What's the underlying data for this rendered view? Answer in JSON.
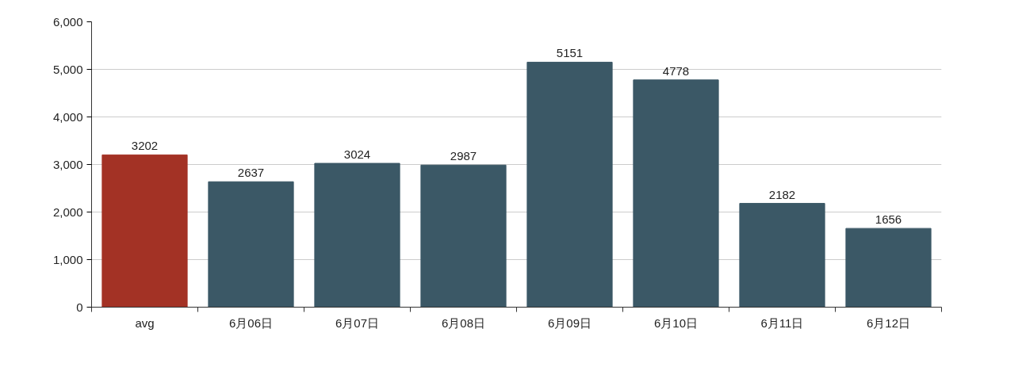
{
  "chart_data": {
    "type": "bar",
    "categories": [
      "avg",
      "6月06日",
      "6月07日",
      "6月08日",
      "6月09日",
      "6月10日",
      "6月11日",
      "6月12日"
    ],
    "values": [
      3202,
      2637,
      3024,
      2987,
      5151,
      4778,
      2182,
      1656
    ],
    "colors": [
      "#a33225",
      "#3b5866",
      "#3b5866",
      "#3b5866",
      "#3b5866",
      "#3b5866",
      "#3b5866",
      "#3b5866"
    ],
    "ylim": [
      0,
      6000
    ],
    "yticks": [
      0,
      {
        "value": 1000,
        "label": "1,000"
      },
      {
        "value": 2000,
        "label": "2,000"
      },
      {
        "value": 3000,
        "label": "3,000"
      },
      {
        "value": 4000,
        "label": "4,000"
      },
      {
        "value": 5000,
        "label": "5,000"
      },
      {
        "value": 6000,
        "label": "6,000"
      }
    ],
    "grid": "y",
    "data_labels": true
  }
}
